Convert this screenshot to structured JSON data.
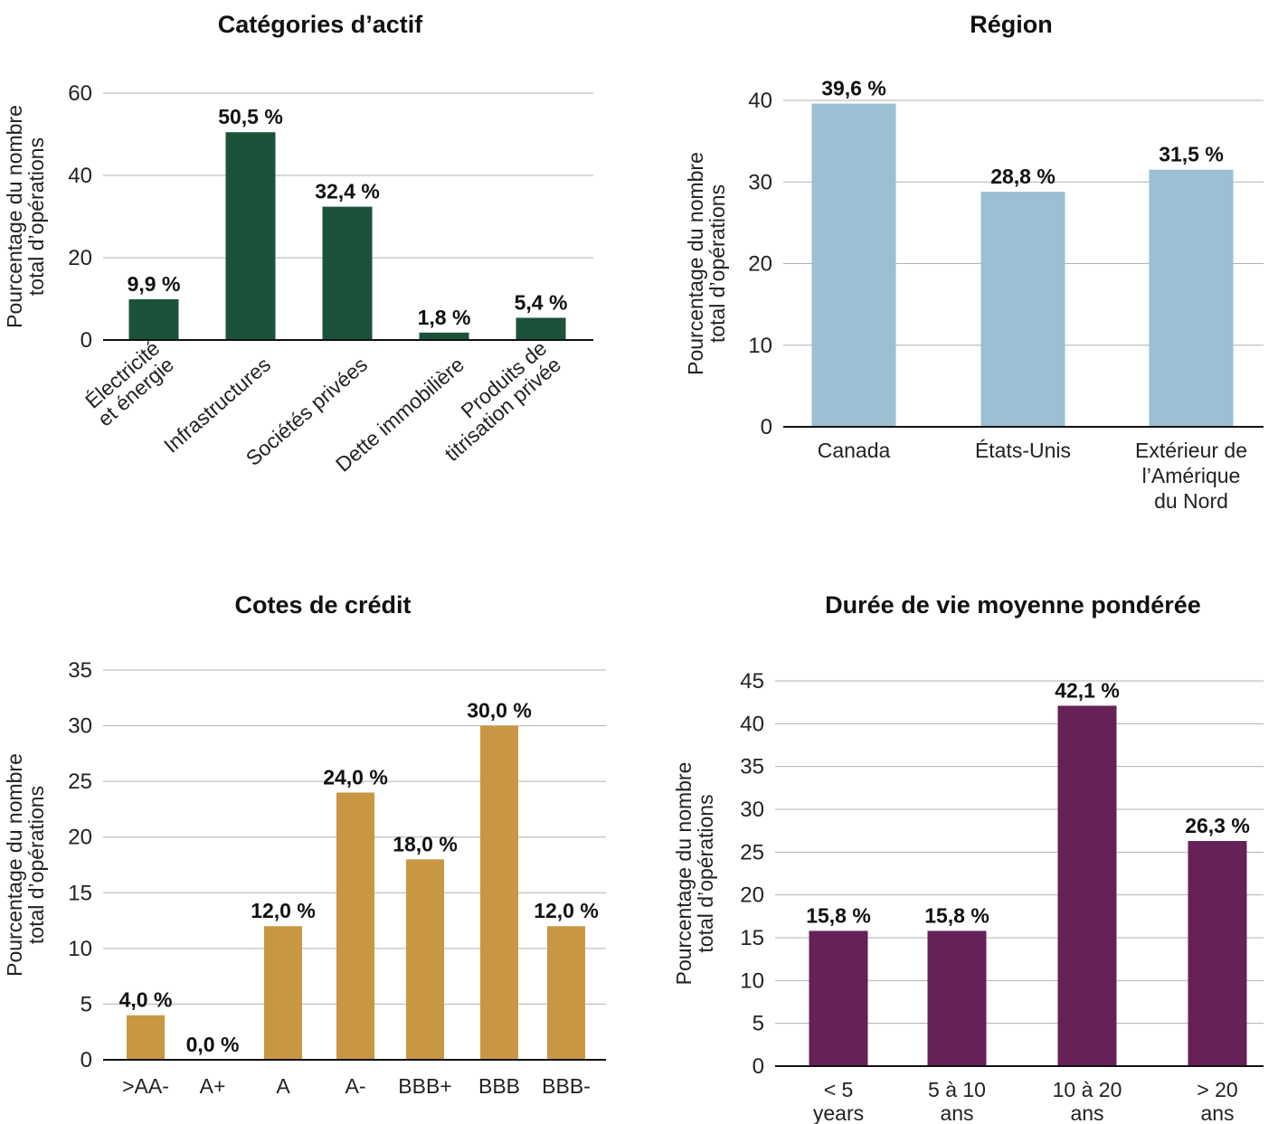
{
  "chart_data": [
    {
      "type": "bar",
      "title": "Catégories d’actif",
      "ylabel": [
        "Pourcentage du nombre",
        "total d’opérations"
      ],
      "categories": [
        [
          "Électricité",
          "et énergie"
        ],
        [
          "Infrastructures"
        ],
        [
          "Sociétés privées"
        ],
        [
          "Dette immobilière"
        ],
        [
          "Produits de",
          "titrisation privée"
        ]
      ],
      "values": [
        9.9,
        50.5,
        32.4,
        1.8,
        5.4
      ],
      "labels": [
        "9,9 %",
        "50,5 %",
        "32,4 %",
        "1,8 %",
        "5,4 %"
      ],
      "ylim": [
        0,
        60
      ],
      "yticks": [
        0,
        20,
        40,
        60
      ],
      "color": "#1c523a",
      "grid": true
    },
    {
      "type": "bar",
      "title": "Région",
      "ylabel": [
        "Pourcentage du nombre",
        "total d’opérations"
      ],
      "categories": [
        [
          "Canada"
        ],
        [
          "États-Unis"
        ],
        [
          "Extérieur de",
          "l’Amérique",
          "du Nord"
        ]
      ],
      "values": [
        39.6,
        28.8,
        31.5
      ],
      "labels": [
        "39,6 %",
        "28,8 %",
        "31,5 %"
      ],
      "ylim": [
        0,
        40
      ],
      "yticks": [
        0,
        10,
        20,
        30,
        40
      ],
      "color": "#9bbfd3",
      "grid": true
    },
    {
      "type": "bar",
      "title": "Cotes de crédit",
      "ylabel": [
        "Pourcentage du nombre",
        "total d’opérations"
      ],
      "categories": [
        [
          ">AA-"
        ],
        [
          "A+"
        ],
        [
          "A"
        ],
        [
          "A-"
        ],
        [
          "BBB+"
        ],
        [
          "BBB"
        ],
        [
          "BBB-"
        ]
      ],
      "values": [
        4.0,
        0.0,
        12.0,
        24.0,
        18.0,
        30.0,
        12.0
      ],
      "labels": [
        "4,0 %",
        "0,0 %",
        "12,0 %",
        "24,0 %",
        "18,0 %",
        "30,0 %",
        "12,0 %"
      ],
      "ylim": [
        0,
        35
      ],
      "yticks": [
        0,
        5,
        10,
        15,
        20,
        25,
        30,
        35
      ],
      "color": "#c99643",
      "grid": true
    },
    {
      "type": "bar",
      "title": "Durée de vie moyenne pondérée",
      "ylabel": [
        "Pourcentage du nombre",
        "total d’opérations"
      ],
      "categories": [
        [
          "< 5",
          "years"
        ],
        [
          "5 à 10",
          "ans"
        ],
        [
          "10 à 20",
          "ans"
        ],
        [
          "> 20",
          "ans"
        ]
      ],
      "values": [
        15.8,
        15.8,
        42.1,
        26.3
      ],
      "labels": [
        "15,8 %",
        "15,8 %",
        "42,1 %",
        "26,3 %"
      ],
      "ylim": [
        0,
        45
      ],
      "yticks": [
        0,
        5,
        10,
        15,
        20,
        25,
        30,
        35,
        40,
        45
      ],
      "color": "#662156",
      "grid": true
    }
  ]
}
